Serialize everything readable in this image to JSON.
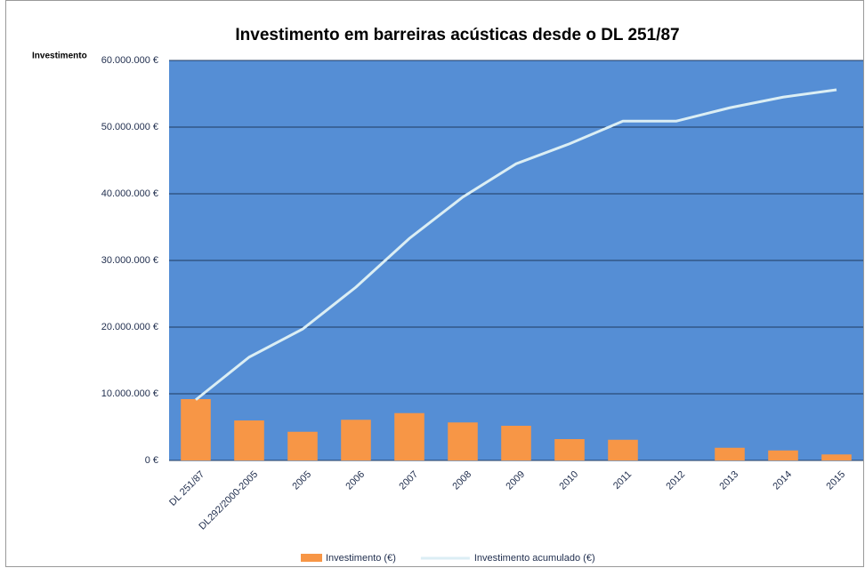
{
  "chart_data": {
    "type": "bar",
    "title": "Investimento em barreiras acústicas desde o DL 251/87",
    "y_label": "Investimento",
    "categories": [
      "DL 251/87",
      "DL292/2000-2005",
      "2005",
      "2006",
      "2007",
      "2008",
      "2009",
      "2010",
      "2011",
      "2012",
      "2013",
      "2014",
      "2015"
    ],
    "series": [
      {
        "name": "Investimento (€)",
        "type": "bar",
        "color": "#f79646",
        "values": [
          9200000,
          6000000,
          4300000,
          6100000,
          7100000,
          5700000,
          5200000,
          3200000,
          3100000,
          0,
          1900000,
          1500000,
          900000
        ]
      },
      {
        "name": "Investimento acumulado (€)",
        "type": "line",
        "color": "#dbeef4",
        "values": [
          9100000,
          15500000,
          19700000,
          26000000,
          33300000,
          39500000,
          44500000,
          47500000,
          50900000,
          50900000,
          52900000,
          54500000,
          55600000
        ]
      }
    ],
    "ylim": [
      0,
      60000000
    ],
    "yticks": [
      {
        "value": 0,
        "label": "0 €"
      },
      {
        "value": 10000000,
        "label": "10.000.000 €"
      },
      {
        "value": 20000000,
        "label": "20.000.000 €"
      },
      {
        "value": 30000000,
        "label": "30.000.000 €"
      },
      {
        "value": 40000000,
        "label": "40.000.000 €"
      },
      {
        "value": 50000000,
        "label": "50.000.000 €"
      },
      {
        "value": 60000000,
        "label": "60.000.000 €"
      }
    ],
    "grid": true,
    "plot_background": "#558ed5",
    "legend": "bottom"
  }
}
